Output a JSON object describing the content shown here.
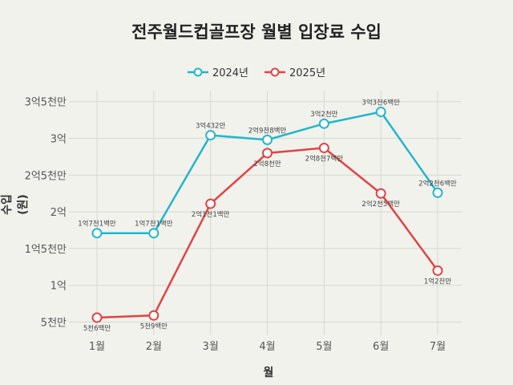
{
  "chart_data": {
    "type": "line",
    "title": "전주월드컵골프장 월별 입장료 수입",
    "xlabel": "월",
    "ylabel": "수입 (원)",
    "categories": [
      "1월",
      "2월",
      "3월",
      "4월",
      "5월",
      "6월",
      "7월"
    ],
    "ylim": [
      32000000,
      365000000
    ],
    "yticks": [
      50000000,
      100000000,
      150000000,
      200000000,
      250000000,
      300000000,
      350000000
    ],
    "ytick_labels": [
      "5천만",
      "1억",
      "1억5천만",
      "2억",
      "2억5천만",
      "3억",
      "3억5천만"
    ],
    "grid": true,
    "legend": "top",
    "series": [
      {
        "name": "2024년",
        "color": "#22b6cc",
        "values": [
          171000000,
          171000000,
          304320000,
          298000000,
          320000000,
          336000000,
          226000000
        ],
        "labels": [
          "1억7천1백만",
          "1억7천1백만",
          "3억432만",
          "2억9천8백만",
          "3억2천만",
          "3억3천6백만",
          "2억2천6백만"
        ],
        "label_position": "above"
      },
      {
        "name": "2025년",
        "color": "#e04444",
        "values": [
          56000000,
          59000000,
          211000000,
          280000000,
          287000000,
          225000000,
          120000000
        ],
        "labels": [
          "5천6백만",
          "5천9백만",
          "2억1천1백만",
          "2억8천만",
          "2억8천7백만",
          "2억2천5백만",
          "1억2천만"
        ],
        "label_position": "below"
      }
    ]
  }
}
